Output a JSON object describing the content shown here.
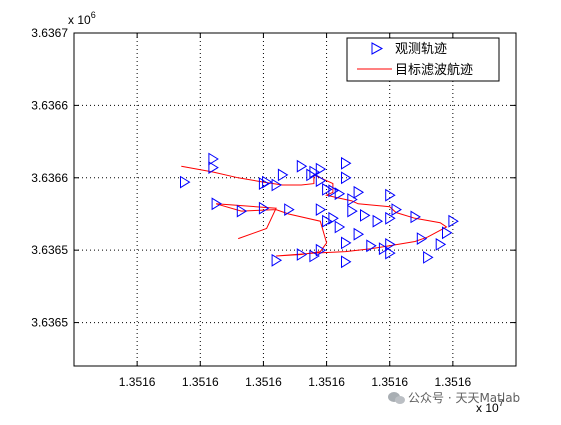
{
  "chart_data": {
    "type": "line",
    "x_exponent_label": "x 10",
    "x_exponent_power": "7",
    "y_exponent_label": "x 10",
    "y_exponent_power": "6",
    "xlim": [
      1.35155,
      1.35162
    ],
    "ylim": [
      3.63649,
      3.63672
    ],
    "x_ticks": [
      {
        "value": 1.35156,
        "label": "1.3516"
      },
      {
        "value": 1.35157,
        "label": "1.3516"
      },
      {
        "value": 1.35158,
        "label": "1.3516"
      },
      {
        "value": 1.35159,
        "label": "1.3516"
      },
      {
        "value": 1.3516,
        "label": "1.3516"
      },
      {
        "value": 1.35161,
        "label": "1.3516"
      }
    ],
    "y_ticks": [
      {
        "value": 3.63652,
        "label": "3.6365"
      },
      {
        "value": 3.63657,
        "label": "3.6365"
      },
      {
        "value": 3.63662,
        "label": "3.6366"
      },
      {
        "value": 3.63667,
        "label": "3.6366"
      },
      {
        "value": 3.63672,
        "label": "3.6367"
      }
    ],
    "grid": true,
    "legend_position": "top-right",
    "series": [
      {
        "name": "观测轨迹",
        "style": "markers",
        "marker": "triangle-right",
        "color": "#0000ff",
        "x": [
          1.351572,
          1.351572,
          1.351583,
          1.35158,
          1.351589,
          1.351586,
          1.351589,
          1.351588,
          1.3515875,
          1.351591,
          1.351593,
          1.351593,
          1.35159,
          1.351592,
          1.351594,
          1.351595,
          1.3516,
          1.351601,
          1.351604,
          1.35161,
          1.351609,
          1.351606,
          1.351608,
          1.351605,
          1.351599,
          1.3516,
          1.3516,
          1.351593,
          1.351588,
          1.351582,
          1.351586,
          1.351589,
          1.351597,
          1.351593,
          1.351595,
          1.35159,
          1.351592,
          1.351598,
          1.3516,
          1.351596,
          1.351594,
          1.351591,
          1.351589,
          1.351584,
          1.3515765,
          1.3515725,
          1.3515805,
          1.351582,
          1.3515675,
          1.35158
        ],
        "y": [
          3.636627,
          3.636633,
          3.636622,
          3.636616,
          3.636618,
          3.636628,
          3.636626,
          3.636624,
          3.636622,
          3.636611,
          3.63662,
          3.63663,
          3.636612,
          3.636609,
          3.636605,
          3.63661,
          3.636608,
          3.636598,
          3.636593,
          3.63659,
          3.636582,
          3.636565,
          3.636574,
          3.636578,
          3.636571,
          3.636574,
          3.636568,
          3.636562,
          3.636566,
          3.636563,
          3.636567,
          3.63657,
          3.636573,
          3.636575,
          3.636581,
          3.63659,
          3.636586,
          3.63659,
          3.636592,
          3.636594,
          3.636597,
          3.636592,
          3.636598,
          3.636598,
          3.636597,
          3.636602,
          3.636617,
          3.636615,
          3.636617,
          3.636599
        ]
      },
      {
        "name": "目标滤波航迹",
        "style": "line",
        "color": "#ff0000",
        "x": [
          1.351567,
          1.351572,
          1.351576,
          1.35158,
          1.351583,
          1.351586,
          1.351588,
          1.351588,
          1.351588,
          1.351591,
          1.351591,
          1.351591,
          1.35159,
          1.351592,
          1.351594,
          1.351595,
          1.3516,
          1.351601,
          1.351604,
          1.351608,
          1.351609,
          1.351606,
          1.351604,
          1.3516,
          1.351597,
          1.351593,
          1.351588,
          1.351582,
          1.351586,
          1.351589,
          1.35159,
          1.351589,
          1.351584,
          1.351582,
          1.3515765,
          1.3515725,
          1.351582,
          1.3515805,
          1.351576
        ],
        "y": [
          3.636628,
          3.636624,
          3.63662,
          3.636617,
          3.636615,
          3.636615,
          3.636616,
          3.636619,
          3.636622,
          3.636616,
          3.636614,
          3.63661,
          3.636608,
          3.636606,
          3.636604,
          3.636602,
          3.6366,
          3.636596,
          3.636592,
          3.636589,
          3.636586,
          3.636579,
          3.636576,
          3.636573,
          3.636571,
          3.636569,
          3.636568,
          3.636566,
          3.636567,
          3.636569,
          3.636575,
          3.63659,
          3.636595,
          3.636598,
          3.636597,
          3.636602,
          3.636599,
          3.636585,
          3.636578
        ]
      }
    ]
  },
  "watermark": {
    "text": "公众号 · 天天Matlab",
    "icon": "wechat-icon"
  }
}
